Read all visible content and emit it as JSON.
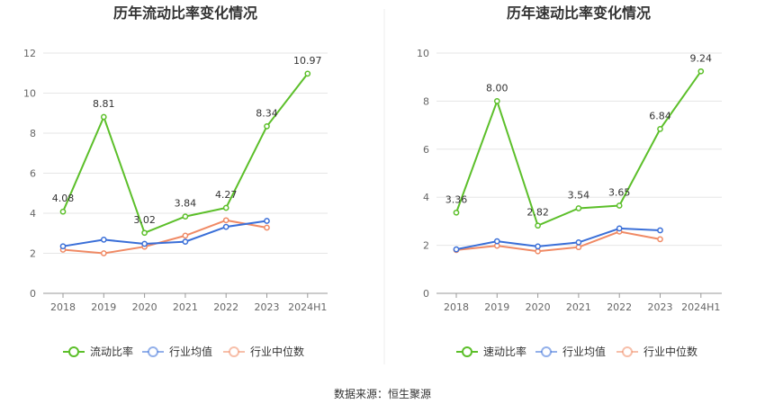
{
  "source": "数据来源：恒生聚源",
  "chart_data": [
    {
      "type": "line",
      "title": "历年流动比率变化情况",
      "categories": [
        "2018",
        "2019",
        "2020",
        "2021",
        "2022",
        "2023",
        "2024H1"
      ],
      "ylim": [
        0,
        12
      ],
      "yticks": [
        0,
        2,
        4,
        6,
        8,
        10,
        12
      ],
      "grid": true,
      "legend_position": "bottom",
      "series": [
        {
          "name": "流动比率",
          "color": "#5cbf2a",
          "labels": true,
          "values": [
            4.08,
            8.81,
            3.02,
            3.84,
            4.27,
            8.34,
            10.97
          ]
        },
        {
          "name": "行业均值",
          "color": "#3a6fd8",
          "labels": false,
          "values": [
            2.35,
            2.68,
            2.47,
            2.58,
            3.32,
            3.62,
            null
          ]
        },
        {
          "name": "行业中位数",
          "color": "#f08a65",
          "labels": false,
          "values": [
            2.18,
            2.0,
            2.33,
            2.88,
            3.65,
            3.28,
            null
          ]
        }
      ]
    },
    {
      "type": "line",
      "title": "历年速动比率变化情况",
      "categories": [
        "2018",
        "2019",
        "2020",
        "2021",
        "2022",
        "2023",
        "2024H1"
      ],
      "ylim": [
        0,
        10
      ],
      "yticks": [
        0,
        2,
        4,
        6,
        8,
        10
      ],
      "grid": true,
      "legend_position": "bottom",
      "series": [
        {
          "name": "速动比率",
          "color": "#5cbf2a",
          "labels": true,
          "values": [
            3.36,
            8.0,
            2.82,
            3.54,
            3.65,
            6.84,
            9.24
          ]
        },
        {
          "name": "行业均值",
          "color": "#3a6fd8",
          "labels": false,
          "values": [
            1.83,
            2.17,
            1.95,
            2.12,
            2.7,
            2.62,
            null
          ]
        },
        {
          "name": "行业中位数",
          "color": "#f08a65",
          "labels": false,
          "values": [
            1.8,
            1.98,
            1.75,
            1.92,
            2.57,
            2.25,
            null
          ]
        }
      ]
    }
  ]
}
